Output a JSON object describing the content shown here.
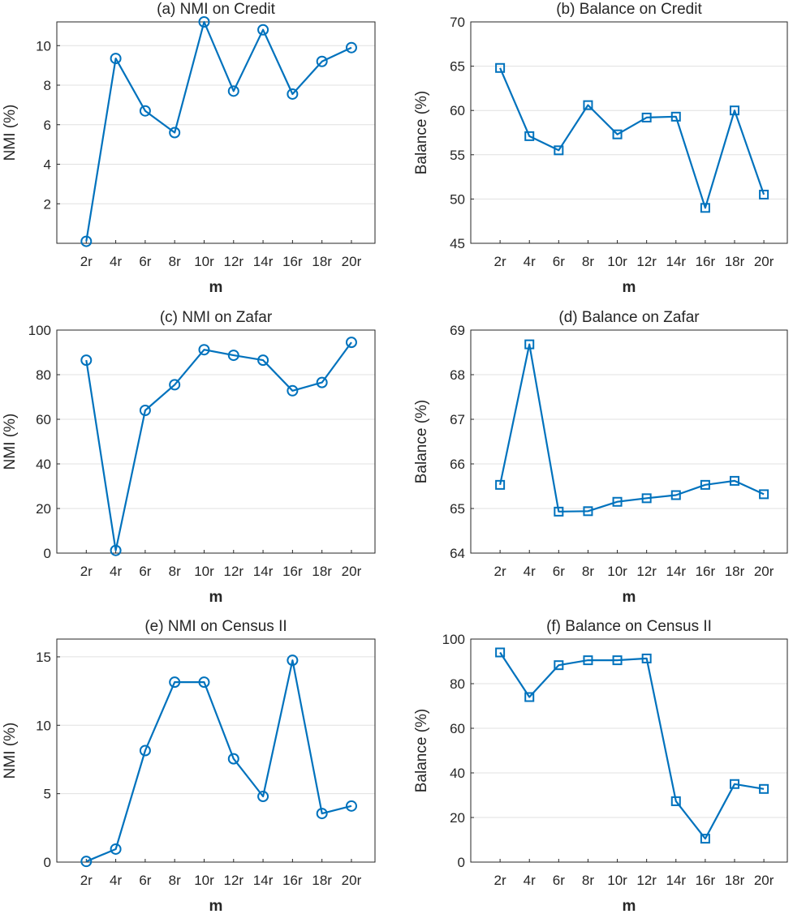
{
  "figure": {
    "colors": {
      "series": "#0072BD",
      "axis": "#262626",
      "grid": "#E0E0E0"
    }
  },
  "chart_data": [
    {
      "type": "line",
      "title": "(a) NMI on Credit",
      "xlabel": "m",
      "ylabel": "NMI (%)",
      "categories": [
        "2r",
        "4r",
        "6r",
        "8r",
        "10r",
        "12r",
        "14r",
        "16r",
        "18r",
        "20r"
      ],
      "values": [
        0.1,
        9.35,
        6.7,
        5.6,
        11.2,
        7.7,
        10.8,
        7.55,
        9.2,
        9.9
      ],
      "ylim": [
        0,
        11.2
      ],
      "yticks": [
        2,
        4,
        6,
        8,
        10
      ],
      "marker": "circle",
      "grid": "horizontal"
    },
    {
      "type": "line",
      "title": "(b) Balance on Credit",
      "xlabel": "m",
      "ylabel": "Balance (%)",
      "categories": [
        "2r",
        "4r",
        "6r",
        "8r",
        "10r",
        "12r",
        "14r",
        "16r",
        "18r",
        "20r"
      ],
      "values": [
        64.8,
        57.1,
        55.5,
        60.6,
        57.3,
        59.2,
        59.3,
        49.0,
        60.0,
        50.5
      ],
      "ylim": [
        45,
        70
      ],
      "yticks": [
        45,
        50,
        55,
        60,
        65,
        70
      ],
      "marker": "square",
      "grid": "horizontal"
    },
    {
      "type": "line",
      "title": "(c) NMI on Zafar",
      "xlabel": "m",
      "ylabel": "NMI (%)",
      "categories": [
        "2r",
        "4r",
        "6r",
        "8r",
        "10r",
        "12r",
        "14r",
        "16r",
        "18r",
        "20r"
      ],
      "values": [
        86.5,
        1.2,
        64.0,
        75.5,
        91.2,
        88.7,
        86.5,
        72.8,
        76.5,
        94.5
      ],
      "ylim": [
        0,
        100
      ],
      "yticks": [
        0,
        20,
        40,
        60,
        80,
        100
      ],
      "marker": "circle",
      "grid": "horizontal"
    },
    {
      "type": "line",
      "title": "(d) Balance on Zafar",
      "xlabel": "m",
      "ylabel": "Balance (%)",
      "categories": [
        "2r",
        "4r",
        "6r",
        "8r",
        "10r",
        "12r",
        "14r",
        "16r",
        "18r",
        "20r"
      ],
      "values": [
        65.53,
        68.68,
        64.93,
        64.94,
        65.15,
        65.23,
        65.3,
        65.53,
        65.62,
        65.32
      ],
      "ylim": [
        64,
        69
      ],
      "yticks": [
        64,
        65,
        66,
        67,
        68,
        69
      ],
      "marker": "square",
      "grid": "horizontal"
    },
    {
      "type": "line",
      "title": "(e) NMI on Census II",
      "xlabel": "m",
      "ylabel": "NMI (%)",
      "categories": [
        "2r",
        "4r",
        "6r",
        "8r",
        "10r",
        "12r",
        "14r",
        "16r",
        "18r",
        "20r"
      ],
      "values": [
        0.05,
        0.95,
        8.15,
        13.15,
        13.15,
        7.55,
        4.8,
        14.75,
        3.55,
        4.1
      ],
      "ylim": [
        0,
        16.3
      ],
      "yticks": [
        0,
        5,
        10,
        15
      ],
      "marker": "circle",
      "grid": "horizontal"
    },
    {
      "type": "line",
      "title": "(f) Balance on Census II",
      "xlabel": "m",
      "ylabel": "Balance (%)",
      "categories": [
        "2r",
        "4r",
        "6r",
        "8r",
        "10r",
        "12r",
        "14r",
        "16r",
        "18r",
        "20r"
      ],
      "values": [
        94.0,
        74.0,
        88.3,
        90.5,
        90.5,
        91.3,
        27.3,
        10.5,
        35.0,
        32.8
      ],
      "ylim": [
        0,
        100
      ],
      "yticks": [
        0,
        20,
        40,
        60,
        80,
        100
      ],
      "marker": "square",
      "grid": "horizontal"
    }
  ]
}
